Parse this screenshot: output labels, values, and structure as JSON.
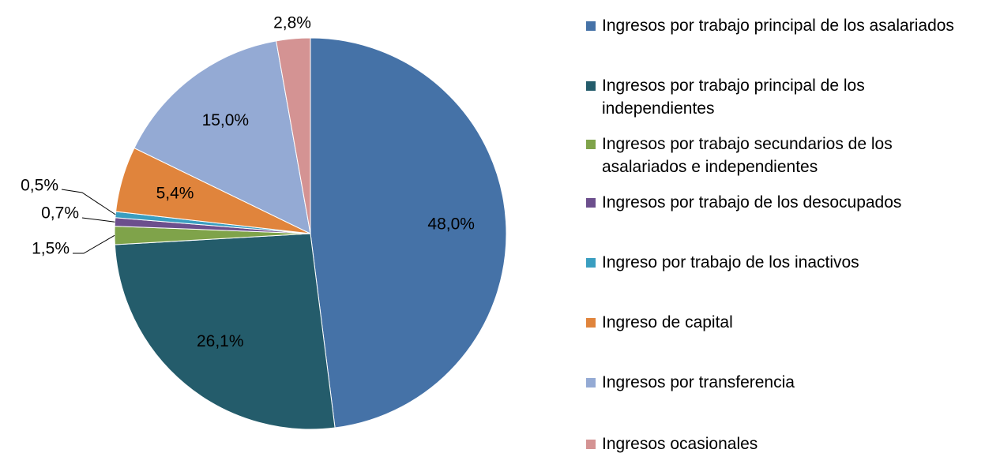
{
  "chart_data": {
    "type": "pie",
    "categories": [
      "Ingresos por trabajo principal de los asalariados",
      "Ingresos por trabajo principal de los independientes",
      "Ingresos por trabajo secundarios de los asalariados e independientes",
      "Ingresos por trabajo de los desocupados",
      "Ingreso por trabajo de los inactivos",
      "Ingreso de capital",
      "Ingresos por transferencia",
      "Ingresos ocasionales"
    ],
    "values": [
      48.0,
      26.1,
      1.5,
      0.7,
      0.5,
      5.4,
      15.0,
      2.8
    ],
    "value_labels": [
      "48,0%",
      "26,1%",
      "1,5%",
      "0,7%",
      "0,5%",
      "5,4%",
      "15,0%",
      "2,8%"
    ],
    "colors": [
      "#4572a7",
      "#245c6b",
      "#7fa34a",
      "#6c4f8d",
      "#3a9ec0",
      "#e0843c",
      "#94aad4",
      "#d49393"
    ],
    "legend": "right"
  }
}
